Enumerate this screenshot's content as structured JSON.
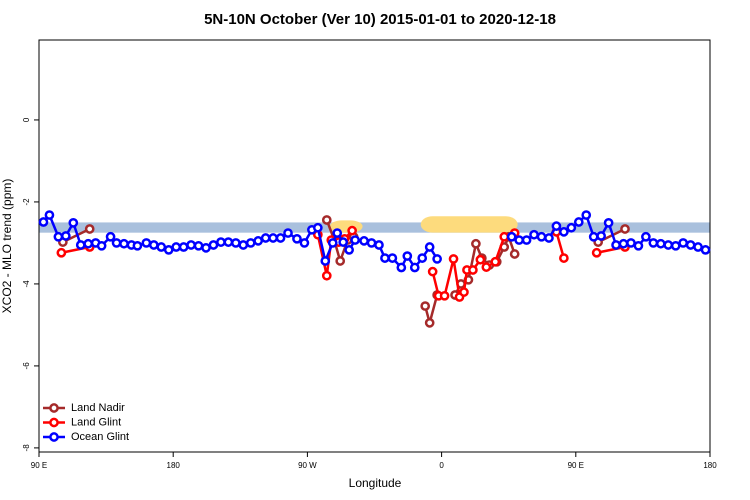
{
  "chart_data": {
    "type": "line",
    "title": "5N-10N October (Ver 10)   2015-01-01 to 2020-12-18",
    "x_label": "Longitude",
    "y_label": "XCO2 - MLO trend (ppm)",
    "xlim": [
      90,
      540
    ],
    "ylim": [
      -8.1,
      1.95
    ],
    "xticks": [
      {
        "value": 90,
        "label": "90 E"
      },
      180,
      {
        "value": 270,
        "label": "90 W"
      },
      {
        "value": 360,
        "label": "0"
      },
      {
        "value": 450,
        "label": "90 E"
      },
      {
        "value": 540,
        "label": "180"
      }
    ],
    "yticks": [
      0,
      -2,
      -4,
      -6,
      -8
    ],
    "legend": "bottom-left",
    "band": {
      "ylim": [
        -2.75,
        -2.5
      ],
      "color": "#a9c0dd"
    },
    "highlights": [
      {
        "xlim": [
          285,
          307
        ],
        "ylim": [
          -2.75,
          -2.45
        ],
        "color": "#fddb7d"
      },
      {
        "xlim": [
          346,
          411
        ],
        "ylim": [
          -2.75,
          -2.35
        ],
        "color": "#fddb7d"
      }
    ],
    "series": [
      {
        "name": "Land Nadir",
        "color": "#a52a2a",
        "x": [
          106,
          124,
          null,
          283,
          288,
          292,
          297,
          301,
          null,
          349,
          352,
          357,
          null,
          369,
          373,
          378,
          383,
          387,
          392,
          397,
          402,
          405,
          409,
          null,
          465,
          483
        ],
        "values": [
          -2.98,
          -2.66,
          null,
          -2.44,
          -2.93,
          -3.44,
          -2.93,
          -2.85,
          null,
          -4.54,
          -4.95,
          -4.27,
          null,
          -4.27,
          -4.0,
          -3.9,
          -3.02,
          -3.37,
          -3.54,
          -3.46,
          -3.1,
          -2.85,
          -3.27,
          null,
          -2.98,
          -2.66
        ]
      },
      {
        "name": "Land Glint",
        "color": "#ff0000",
        "x": [
          105,
          124,
          null,
          277,
          283,
          286,
          291,
          295,
          300,
          null,
          354,
          358,
          362,
          368,
          372,
          375,
          377,
          381,
          386,
          390,
          396,
          402,
          409,
          null,
          437,
          442,
          null,
          464,
          483
        ],
        "values": [
          -3.24,
          -3.1,
          null,
          -2.8,
          -3.8,
          -2.93,
          -2.98,
          -2.9,
          -2.7,
          null,
          -3.7,
          -4.29,
          -4.29,
          -3.39,
          -4.32,
          -4.2,
          -3.66,
          -3.66,
          -3.41,
          -3.59,
          -3.46,
          -2.85,
          -2.76,
          null,
          -2.73,
          -3.37,
          null,
          -3.24,
          -3.1
        ]
      },
      {
        "name": "Ocean Glint",
        "color": "#0000ff",
        "x": [
          93,
          97,
          103,
          108,
          113,
          118,
          123,
          128,
          132,
          138,
          142,
          147,
          152,
          156,
          162,
          167,
          172,
          177,
          182,
          187,
          192,
          197,
          202,
          207,
          212,
          217,
          222,
          227,
          232,
          237,
          242,
          247,
          252,
          257,
          263,
          268,
          273,
          277,
          282,
          287,
          290,
          294,
          298,
          302,
          308,
          313,
          318,
          322,
          327,
          333,
          337,
          342,
          347,
          352,
          357,
          null,
          407,
          412,
          417,
          422,
          427,
          432,
          437,
          442,
          447,
          452,
          457,
          462,
          467,
          472,
          477,
          482,
          487,
          492,
          497,
          502,
          507,
          512,
          517,
          522,
          527,
          532,
          537
        ],
        "values": [
          -2.49,
          -2.32,
          -2.85,
          -2.83,
          -2.51,
          -3.05,
          -3.02,
          -3.0,
          -3.07,
          -2.85,
          -3.0,
          -3.02,
          -3.05,
          -3.07,
          -3.0,
          -3.05,
          -3.1,
          -3.17,
          -3.1,
          -3.1,
          -3.05,
          -3.07,
          -3.12,
          -3.05,
          -2.98,
          -2.98,
          -3.0,
          -3.05,
          -3.0,
          -2.95,
          -2.88,
          -2.88,
          -2.88,
          -2.76,
          -2.9,
          -3.0,
          -2.68,
          -2.63,
          -3.44,
          -3.0,
          -2.76,
          -2.98,
          -3.17,
          -2.93,
          -2.95,
          -3.0,
          -3.05,
          -3.37,
          -3.37,
          -3.6,
          -3.32,
          -3.6,
          -3.37,
          -3.1,
          -3.39,
          null,
          -2.85,
          -2.93,
          -2.93,
          -2.8,
          -2.85,
          -2.88,
          -2.59,
          -2.73,
          -2.63,
          -2.49,
          -2.32,
          -2.85,
          -2.83,
          -2.51,
          -3.05,
          -3.02,
          -3.0,
          -3.07,
          -2.85,
          -3.0,
          -3.02,
          -3.05,
          -3.07,
          -3.0,
          -3.05,
          -3.1,
          -3.17
        ]
      }
    ]
  }
}
